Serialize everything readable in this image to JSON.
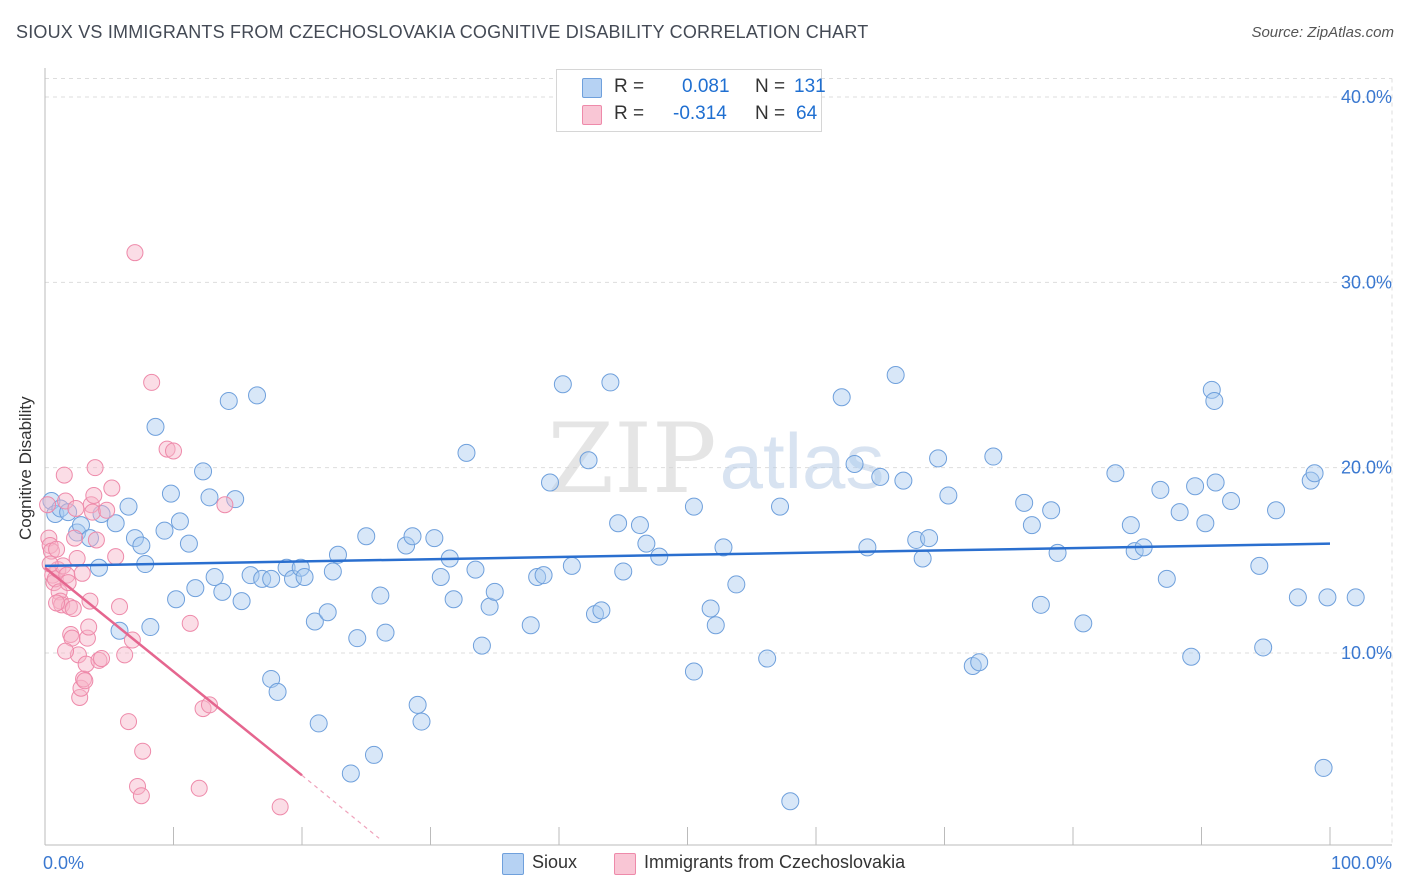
{
  "header": {
    "title": "SIOUX VS IMMIGRANTS FROM CZECHOSLOVAKIA COGNITIVE DISABILITY CORRELATION CHART",
    "source": "Source: ZipAtlas.com"
  },
  "watermark": {
    "zip": "ZIP",
    "atlas": "atlas"
  },
  "legend": {
    "rows": [
      {
        "r_label": "R =",
        "r_value": "0.081",
        "n_label": "N =",
        "n_value": "131"
      },
      {
        "r_label": "R =",
        "r_value": "-0.314",
        "n_label": "N =",
        "n_value": "64"
      }
    ]
  },
  "bottom_legend": {
    "series1": "Sioux",
    "series2": "Immigrants from Czechoslovakia"
  },
  "colors": {
    "sioux_fill": "#a9c9f0",
    "sioux_stroke": "#6fa0dc",
    "sioux_line": "#2a6fcf",
    "czech_fill": "#f7b3c7",
    "czech_stroke": "#ee8aaa",
    "czech_line": "#e5668f",
    "tick_label": "#3a78d0",
    "grid": "#dddddd"
  },
  "chart_data": {
    "type": "scatter",
    "title": "SIOUX VS IMMIGRANTS FROM CZECHOSLOVAKIA COGNITIVE DISABILITY CORRELATION CHART",
    "xlabel": "",
    "ylabel": "Cognitive Disability",
    "xlim": [
      0,
      100
    ],
    "ylim": [
      0,
      41
    ],
    "x_tick_labels": [
      "0.0%",
      "100.0%"
    ],
    "y_ticks": [
      10,
      20,
      30,
      40
    ],
    "y_tick_labels": [
      "10.0%",
      "20.0%",
      "30.0%",
      "40.0%"
    ],
    "series": [
      {
        "name": "Sioux",
        "R": 0.081,
        "N": 131,
        "trend": {
          "x": [
            0,
            100
          ],
          "y": [
            14.7,
            15.9
          ]
        },
        "points": [
          [
            0.5,
            18.2
          ],
          [
            0.8,
            17.5
          ],
          [
            1.2,
            17.8
          ],
          [
            1.8,
            17.6
          ],
          [
            2.5,
            16.5
          ],
          [
            2.8,
            16.9
          ],
          [
            3.5,
            16.2
          ],
          [
            4.2,
            14.6
          ],
          [
            4.4,
            17.5
          ],
          [
            5.5,
            17.0
          ],
          [
            5.8,
            11.2
          ],
          [
            6.5,
            17.9
          ],
          [
            7.0,
            16.2
          ],
          [
            7.5,
            15.8
          ],
          [
            7.8,
            14.8
          ],
          [
            8.2,
            11.4
          ],
          [
            8.6,
            22.2
          ],
          [
            9.3,
            16.6
          ],
          [
            9.8,
            18.6
          ],
          [
            10.2,
            12.9
          ],
          [
            10.5,
            17.1
          ],
          [
            11.2,
            15.9
          ],
          [
            11.7,
            13.5
          ],
          [
            12.3,
            19.8
          ],
          [
            12.8,
            18.4
          ],
          [
            13.2,
            14.1
          ],
          [
            13.8,
            13.3
          ],
          [
            14.3,
            23.6
          ],
          [
            14.8,
            18.3
          ],
          [
            15.3,
            12.8
          ],
          [
            16.0,
            14.2
          ],
          [
            16.5,
            23.9
          ],
          [
            16.9,
            14.0
          ],
          [
            17.6,
            14.0
          ],
          [
            17.6,
            8.6
          ],
          [
            18.1,
            7.9
          ],
          [
            18.8,
            14.6
          ],
          [
            19.3,
            14.0
          ],
          [
            19.9,
            14.6
          ],
          [
            20.2,
            14.1
          ],
          [
            21.0,
            11.7
          ],
          [
            21.3,
            6.2
          ],
          [
            22.0,
            12.2
          ],
          [
            22.4,
            14.4
          ],
          [
            22.8,
            15.3
          ],
          [
            23.8,
            3.5
          ],
          [
            24.3,
            10.8
          ],
          [
            25.0,
            16.3
          ],
          [
            25.6,
            4.5
          ],
          [
            26.1,
            13.1
          ],
          [
            26.5,
            11.1
          ],
          [
            28.1,
            15.8
          ],
          [
            28.6,
            16.3
          ],
          [
            29.0,
            7.2
          ],
          [
            29.3,
            6.3
          ],
          [
            30.3,
            16.2
          ],
          [
            30.8,
            14.1
          ],
          [
            31.5,
            15.1
          ],
          [
            31.8,
            12.9
          ],
          [
            32.8,
            20.8
          ],
          [
            33.5,
            14.5
          ],
          [
            34.0,
            10.4
          ],
          [
            34.6,
            12.5
          ],
          [
            35.0,
            13.3
          ],
          [
            37.8,
            11.5
          ],
          [
            38.3,
            14.1
          ],
          [
            38.8,
            14.2
          ],
          [
            39.3,
            19.2
          ],
          [
            40.3,
            24.5
          ],
          [
            41.0,
            14.7
          ],
          [
            42.3,
            20.4
          ],
          [
            42.8,
            12.1
          ],
          [
            43.3,
            12.3
          ],
          [
            44.0,
            24.6
          ],
          [
            44.6,
            17.0
          ],
          [
            45.0,
            14.4
          ],
          [
            46.3,
            16.9
          ],
          [
            46.8,
            15.9
          ],
          [
            47.8,
            15.2
          ],
          [
            50.5,
            9.0
          ],
          [
            50.5,
            17.9
          ],
          [
            51.8,
            12.4
          ],
          [
            52.2,
            11.5
          ],
          [
            52.8,
            15.7
          ],
          [
            53.8,
            13.7
          ],
          [
            56.2,
            9.7
          ],
          [
            57.2,
            17.9
          ],
          [
            58.0,
            2.0
          ],
          [
            62.0,
            23.8
          ],
          [
            63.0,
            20.2
          ],
          [
            64.0,
            15.7
          ],
          [
            65.0,
            19.5
          ],
          [
            66.2,
            25.0
          ],
          [
            66.8,
            19.3
          ],
          [
            67.8,
            16.1
          ],
          [
            68.3,
            15.1
          ],
          [
            68.8,
            16.2
          ],
          [
            69.5,
            20.5
          ],
          [
            70.3,
            18.5
          ],
          [
            72.2,
            9.3
          ],
          [
            72.7,
            9.5
          ],
          [
            73.8,
            20.6
          ],
          [
            76.2,
            18.1
          ],
          [
            76.8,
            16.9
          ],
          [
            77.5,
            12.6
          ],
          [
            78.3,
            17.7
          ],
          [
            78.8,
            15.4
          ],
          [
            80.8,
            11.6
          ],
          [
            83.3,
            19.7
          ],
          [
            84.5,
            16.9
          ],
          [
            84.8,
            15.5
          ],
          [
            85.5,
            15.7
          ],
          [
            86.8,
            18.8
          ],
          [
            87.3,
            14.0
          ],
          [
            88.3,
            17.6
          ],
          [
            89.2,
            9.8
          ],
          [
            89.5,
            19.0
          ],
          [
            90.3,
            17.0
          ],
          [
            90.8,
            24.2
          ],
          [
            91.0,
            23.6
          ],
          [
            91.1,
            19.2
          ],
          [
            92.3,
            18.2
          ],
          [
            94.5,
            14.7
          ],
          [
            94.8,
            10.3
          ],
          [
            95.8,
            17.7
          ],
          [
            97.5,
            13.0
          ],
          [
            98.5,
            19.3
          ],
          [
            98.8,
            19.7
          ],
          [
            99.5,
            3.8
          ],
          [
            99.8,
            13.0
          ],
          [
            102.0,
            13.0
          ]
        ]
      },
      {
        "name": "Immigrants from Czechoslovakia",
        "R": -0.314,
        "N": 64,
        "trend": {
          "x": [
            0,
            20.0
          ],
          "y": [
            14.6,
            3.4
          ]
        },
        "trend_extension": {
          "x": [
            20.0,
            26.0
          ],
          "y": [
            3.4,
            0.0
          ]
        },
        "points": [
          [
            0.2,
            18.0
          ],
          [
            0.3,
            16.2
          ],
          [
            0.4,
            15.8
          ],
          [
            0.5,
            15.5
          ],
          [
            0.6,
            14.2
          ],
          [
            0.7,
            13.8
          ],
          [
            0.8,
            14.0
          ],
          [
            0.9,
            15.6
          ],
          [
            1.0,
            14.5
          ],
          [
            1.1,
            13.3
          ],
          [
            1.2,
            12.8
          ],
          [
            1.3,
            12.6
          ],
          [
            1.4,
            14.7
          ],
          [
            1.5,
            19.6
          ],
          [
            1.6,
            18.2
          ],
          [
            1.7,
            14.2
          ],
          [
            1.8,
            13.8
          ],
          [
            1.9,
            12.5
          ],
          [
            2.0,
            11.0
          ],
          [
            2.1,
            10.8
          ],
          [
            2.2,
            12.4
          ],
          [
            2.3,
            16.2
          ],
          [
            2.4,
            17.8
          ],
          [
            2.5,
            15.1
          ],
          [
            2.6,
            9.9
          ],
          [
            2.7,
            7.6
          ],
          [
            2.8,
            8.1
          ],
          [
            3.0,
            8.6
          ],
          [
            3.1,
            8.5
          ],
          [
            3.2,
            9.4
          ],
          [
            3.3,
            10.8
          ],
          [
            3.4,
            11.4
          ],
          [
            3.5,
            12.8
          ],
          [
            3.6,
            18.0
          ],
          [
            3.7,
            17.6
          ],
          [
            3.8,
            18.5
          ],
          [
            3.9,
            20.0
          ],
          [
            4.0,
            16.1
          ],
          [
            4.2,
            9.6
          ],
          [
            4.4,
            9.7
          ],
          [
            4.8,
            17.7
          ],
          [
            5.2,
            18.9
          ],
          [
            5.5,
            15.2
          ],
          [
            5.8,
            12.5
          ],
          [
            6.2,
            9.9
          ],
          [
            6.5,
            6.3
          ],
          [
            6.8,
            10.7
          ],
          [
            7.0,
            31.6
          ],
          [
            7.2,
            2.8
          ],
          [
            7.5,
            2.3
          ],
          [
            7.6,
            4.7
          ],
          [
            8.3,
            24.6
          ],
          [
            9.5,
            21.0
          ],
          [
            10.0,
            20.9
          ],
          [
            11.3,
            11.6
          ],
          [
            12.0,
            2.7
          ],
          [
            12.3,
            7.0
          ],
          [
            12.8,
            7.2
          ],
          [
            14.0,
            18.0
          ],
          [
            18.3,
            1.7
          ],
          [
            0.4,
            14.8
          ],
          [
            0.9,
            12.7
          ],
          [
            1.6,
            10.1
          ],
          [
            2.9,
            14.3
          ]
        ]
      }
    ]
  }
}
